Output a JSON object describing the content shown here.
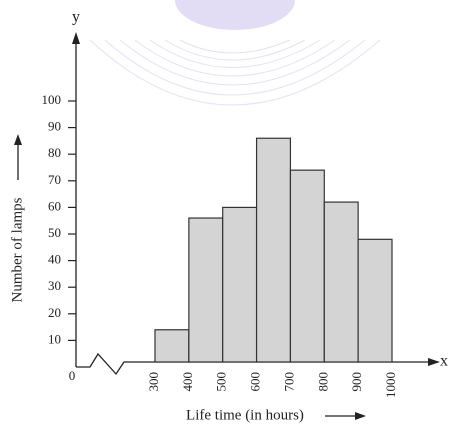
{
  "chart_data": {
    "type": "histogram",
    "x_label": "x",
    "y_label": "y",
    "origin_label": "0",
    "x_title": "Life time (in hours)",
    "y_title": "Number of lamps",
    "bins": [
      300,
      400,
      500,
      600,
      700,
      800,
      900,
      1000
    ],
    "values": [
      14,
      56,
      60,
      86,
      74,
      62,
      48
    ],
    "color": "#d4d4d4",
    "ylim": [
      0,
      110
    ],
    "yticks": [
      10,
      20,
      30,
      40,
      50,
      60,
      70,
      80,
      90,
      100
    ]
  }
}
